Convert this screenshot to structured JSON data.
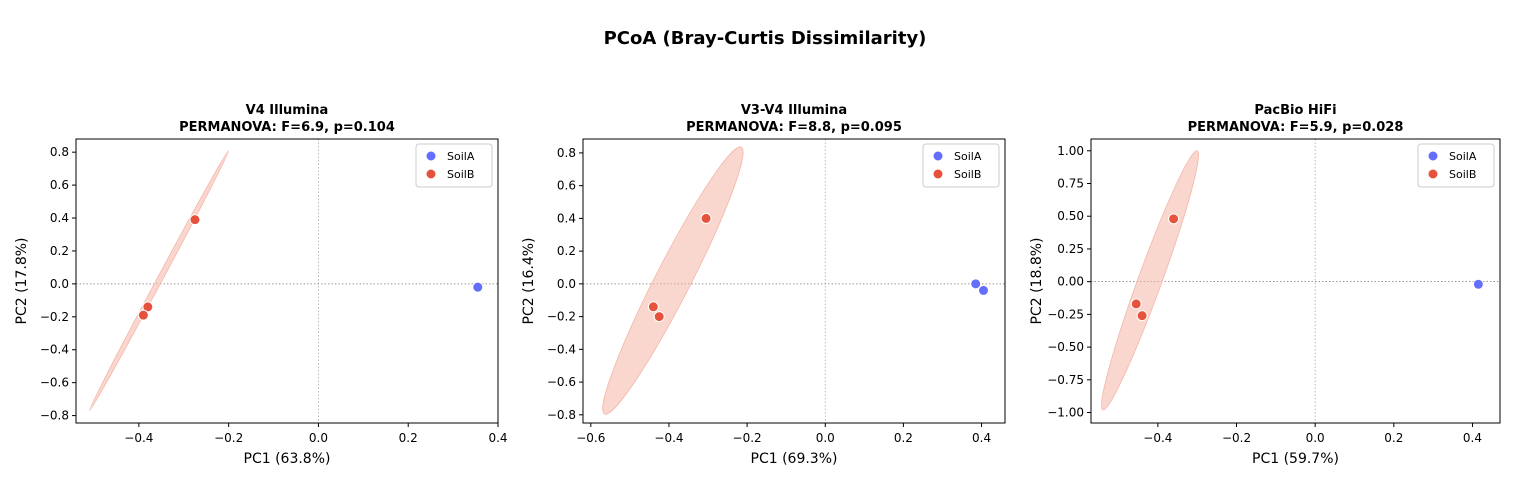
{
  "figure_title": "PCoA (Bray-Curtis Dissimilarity)",
  "colors": {
    "SoilA": "#636EFA",
    "SoilB": "#E5533D",
    "ellipse": "#F4B6A8"
  },
  "chart_data": [
    {
      "type": "scatter",
      "title": "V4 Illumina",
      "subtitle": "PERMANOVA: F=6.9, p=0.104",
      "xlabel": "PC1 (63.8%)",
      "ylabel": "PC2 (17.8%)",
      "xlim": [
        -0.54,
        0.4
      ],
      "ylim": [
        -0.845,
        0.88
      ],
      "xticks": [
        -0.4,
        -0.2,
        0.0,
        0.2,
        0.4
      ],
      "xtick_labels": [
        "−0.4",
        "−0.2",
        "0.0",
        "0.2",
        "0.4"
      ],
      "yticks": [
        -0.8,
        -0.6,
        -0.4,
        -0.2,
        0.0,
        0.2,
        0.4,
        0.6,
        0.8
      ],
      "ytick_labels": [
        "−0.8",
        "−0.6",
        "−0.4",
        "−0.2",
        "0.0",
        "0.2",
        "0.4",
        "0.6",
        "0.8"
      ],
      "legend": "top-right",
      "series": [
        {
          "name": "SoilA",
          "points": [
            [
              0.355,
              -0.02
            ]
          ]
        },
        {
          "name": "SoilB",
          "points": [
            [
              -0.275,
              0.39
            ],
            [
              -0.38,
              -0.14
            ],
            [
              -0.39,
              -0.19
            ]
          ]
        }
      ],
      "ellipse": {
        "series": "SoilB",
        "center": [
          -0.355,
          0.02
        ],
        "endpoint": [
          -0.2,
          0.81
        ],
        "half_width": 0.006
      }
    },
    {
      "type": "scatter",
      "title": "V3-V4 Illumina",
      "subtitle": "PERMANOVA: F=8.8, p=0.095",
      "xlabel": "PC1 (69.3%)",
      "ylabel": "PC2 (16.4%)",
      "xlim": [
        -0.62,
        0.46
      ],
      "ylim": [
        -0.85,
        0.885
      ],
      "xticks": [
        -0.6,
        -0.4,
        -0.2,
        0.0,
        0.2,
        0.4
      ],
      "xtick_labels": [
        "−0.6",
        "−0.4",
        "−0.2",
        "0.0",
        "0.2",
        "0.4"
      ],
      "yticks": [
        -0.8,
        -0.6,
        -0.4,
        -0.2,
        0.0,
        0.2,
        0.4,
        0.6,
        0.8
      ],
      "ytick_labels": [
        "−0.8",
        "−0.6",
        "−0.4",
        "−0.2",
        "0.0",
        "0.2",
        "0.4",
        "0.6",
        "0.8"
      ],
      "legend": "top-right",
      "series": [
        {
          "name": "SoilA",
          "points": [
            [
              0.385,
              0.0
            ],
            [
              0.405,
              -0.04
            ]
          ]
        },
        {
          "name": "SoilB",
          "points": [
            [
              -0.305,
              0.4
            ],
            [
              -0.44,
              -0.14
            ],
            [
              -0.425,
              -0.2
            ]
          ]
        }
      ],
      "ellipse": {
        "series": "SoilB",
        "center": [
          -0.39,
          0.02
        ],
        "endpoint": [
          -0.215,
          0.835
        ],
        "half_width": 0.045
      }
    },
    {
      "type": "scatter",
      "title": "PacBio HiFi",
      "subtitle": "PERMANOVA: F=5.9, p=0.028",
      "xlabel": "PC1 (59.7%)",
      "ylabel": "PC2 (18.8%)",
      "xlim": [
        -0.57,
        0.47
      ],
      "ylim": [
        -1.08,
        1.09
      ],
      "xticks": [
        -0.4,
        -0.2,
        0.0,
        0.2,
        0.4
      ],
      "xtick_labels": [
        "−0.4",
        "−0.2",
        "0.0",
        "0.2",
        "0.4"
      ],
      "yticks": [
        -1.0,
        -0.75,
        -0.5,
        -0.25,
        0.0,
        0.25,
        0.5,
        0.75,
        1.0
      ],
      "ytick_labels": [
        "−1.00",
        "−0.75",
        "−0.50",
        "−0.25",
        "0.00",
        "0.25",
        "0.50",
        "0.75",
        "1.00"
      ],
      "legend": "top-right",
      "series": [
        {
          "name": "SoilA",
          "points": [
            [
              0.415,
              -0.02
            ]
          ]
        },
        {
          "name": "SoilB",
          "points": [
            [
              -0.36,
              0.48
            ],
            [
              -0.455,
              -0.17
            ],
            [
              -0.44,
              -0.26
            ]
          ]
        }
      ],
      "ellipse": {
        "series": "SoilB",
        "center": [
          -0.42,
          0.01
        ],
        "endpoint": [
          -0.3,
          1.0
        ],
        "half_width": 0.03
      }
    }
  ]
}
